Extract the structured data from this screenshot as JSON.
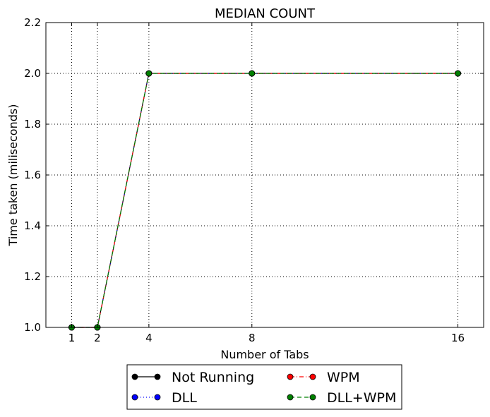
{
  "chart_data": {
    "type": "line",
    "title": "MEDIAN COUNT",
    "xlabel": "Number of Tabs",
    "ylabel": "Time taken (miliseconds)",
    "x": [
      1,
      2,
      4,
      8,
      16
    ],
    "x_ticks": [
      1,
      2,
      4,
      8,
      16
    ],
    "xlim": [
      0,
      17
    ],
    "ylim": [
      1.0,
      2.2
    ],
    "y_ticks": [
      1.0,
      1.2,
      1.4,
      1.6,
      1.8,
      2.0,
      2.2
    ],
    "grid": true,
    "legend_position": "below-center",
    "series": [
      {
        "name": "Not Running",
        "values": [
          1.0,
          1.0,
          2.0,
          2.0,
          2.0
        ],
        "color": "#000000",
        "style": "solid"
      },
      {
        "name": "DLL",
        "values": [
          1.0,
          1.0,
          2.0,
          2.0,
          2.0
        ],
        "color": "#0000ff",
        "style": "dotted"
      },
      {
        "name": "WPM",
        "values": [
          1.0,
          1.0,
          2.0,
          2.0,
          2.0
        ],
        "color": "#ff0000",
        "style": "dashdot"
      },
      {
        "name": "DLL+WPM",
        "values": [
          1.0,
          1.0,
          2.0,
          2.0,
          2.0
        ],
        "color": "#008000",
        "style": "dashed"
      }
    ]
  }
}
